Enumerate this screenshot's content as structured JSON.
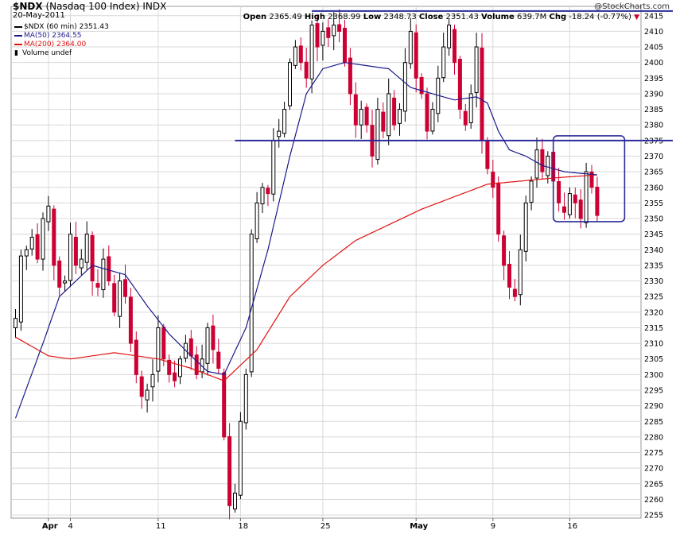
{
  "header": {
    "symbol": "$NDX",
    "symbol_desc": "(Nasdaq 100 Index)",
    "exchange": "INDX",
    "date": "20-May-2011",
    "open_label": "Open",
    "open_value": "2365.49",
    "high_label": "High",
    "high_value": "2368.99",
    "low_label": "Low",
    "low_value": "2348.73",
    "close_label": "Close",
    "close_value": "2351.43",
    "volume_label": "Volume",
    "volume_value": "639.7M",
    "chg_label": "Chg",
    "chg_value": "-18.24 (-0.77%)",
    "watermark": "@StockCharts.com"
  },
  "legend": {
    "price": "$NDX (60 min) 2351.43",
    "ma50": "MA(50) 2364.55",
    "ma200": "MA(200) 2364.00",
    "volume": "Volume undef"
  },
  "colors": {
    "up_candle": "#000000",
    "down_candle": "#cc0033",
    "ma50": "#1a1a8c",
    "ma200": "#e01010",
    "trendline": "#2b2b9c",
    "grid": "#d8d8d8"
  },
  "chart_data": {
    "type": "candlestick",
    "interval": "60 min",
    "y_axis": {
      "range": [
        2254,
        2418
      ],
      "ticks": [
        2255,
        2260,
        2265,
        2270,
        2275,
        2280,
        2285,
        2290,
        2295,
        2300,
        2305,
        2310,
        2315,
        2320,
        2325,
        2330,
        2335,
        2340,
        2345,
        2350,
        2355,
        2360,
        2365,
        2370,
        2375,
        2380,
        2385,
        2390,
        2395,
        2400,
        2405,
        2410,
        2415
      ]
    },
    "x_axis": {
      "ticks": [
        {
          "label": "Apr",
          "bar": 6,
          "bold": true
        },
        {
          "label": "4",
          "bar": 10,
          "bold": false
        },
        {
          "label": "11",
          "bar": 26,
          "bold": false
        },
        {
          "label": "18",
          "bar": 41,
          "bold": false
        },
        {
          "label": "25",
          "bar": 56,
          "bold": false
        },
        {
          "label": "May",
          "bar": 73,
          "bold": true
        },
        {
          "label": "9",
          "bar": 87,
          "bold": false
        },
        {
          "label": "16",
          "bar": 101,
          "bold": false
        }
      ]
    },
    "bar_count": 115,
    "close_anchors": [
      [
        0,
        2318
      ],
      [
        1,
        2338
      ],
      [
        2,
        2340
      ],
      [
        3,
        2344
      ],
      [
        4,
        2337
      ],
      [
        5,
        2350
      ],
      [
        6,
        2354
      ],
      [
        7,
        2335
      ],
      [
        8,
        2328
      ],
      [
        9,
        2330
      ],
      [
        10,
        2345
      ],
      [
        11,
        2335
      ],
      [
        12,
        2337
      ],
      [
        13,
        2345
      ],
      [
        14,
        2330
      ],
      [
        15,
        2328
      ],
      [
        16,
        2337
      ],
      [
        17,
        2330
      ],
      [
        18,
        2320
      ],
      [
        19,
        2330
      ],
      [
        20,
        2325
      ],
      [
        21,
        2310
      ],
      [
        22,
        2300
      ],
      [
        23,
        2293
      ],
      [
        24,
        2295
      ],
      [
        25,
        2300
      ],
      [
        26,
        2315
      ],
      [
        27,
        2305
      ],
      [
        28,
        2300
      ],
      [
        29,
        2298
      ],
      [
        30,
        2305
      ],
      [
        31,
        2310
      ],
      [
        32,
        2306
      ],
      [
        33,
        2300
      ],
      [
        34,
        2305
      ],
      [
        35,
        2315
      ],
      [
        36,
        2308
      ],
      [
        37,
        2302
      ],
      [
        38,
        2280
      ],
      [
        39,
        2258
      ],
      [
        40,
        2262
      ],
      [
        41,
        2285
      ],
      [
        42,
        2300
      ],
      [
        43,
        2345
      ],
      [
        44,
        2355
      ],
      [
        45,
        2360
      ],
      [
        46,
        2358
      ],
      [
        47,
        2375
      ],
      [
        48,
        2378
      ],
      [
        49,
        2385
      ],
      [
        50,
        2400
      ],
      [
        51,
        2405
      ],
      [
        52,
        2400
      ],
      [
        53,
        2395
      ],
      [
        54,
        2412
      ],
      [
        55,
        2405
      ],
      [
        56,
        2410
      ],
      [
        57,
        2408
      ],
      [
        58,
        2412
      ],
      [
        59,
        2410
      ],
      [
        60,
        2400
      ],
      [
        61,
        2390
      ],
      [
        62,
        2380
      ],
      [
        63,
        2385
      ],
      [
        64,
        2380
      ],
      [
        65,
        2370
      ],
      [
        66,
        2385
      ],
      [
        67,
        2378
      ],
      [
        68,
        2390
      ],
      [
        69,
        2380
      ],
      [
        70,
        2385
      ],
      [
        71,
        2400
      ],
      [
        72,
        2410
      ],
      [
        73,
        2395
      ],
      [
        74,
        2390
      ],
      [
        75,
        2378
      ],
      [
        76,
        2385
      ],
      [
        77,
        2395
      ],
      [
        78,
        2405
      ],
      [
        79,
        2412
      ],
      [
        80,
        2400
      ],
      [
        81,
        2385
      ],
      [
        82,
        2380
      ],
      [
        83,
        2390
      ],
      [
        84,
        2405
      ],
      [
        85,
        2375
      ],
      [
        86,
        2366
      ],
      [
        87,
        2360
      ],
      [
        88,
        2345
      ],
      [
        89,
        2335
      ],
      [
        90,
        2328
      ],
      [
        91,
        2325
      ],
      [
        92,
        2340
      ],
      [
        93,
        2355
      ],
      [
        94,
        2362
      ],
      [
        95,
        2372
      ],
      [
        96,
        2365
      ],
      [
        97,
        2370
      ],
      [
        98,
        2362
      ],
      [
        99,
        2355
      ],
      [
        100,
        2352
      ],
      [
        101,
        2358
      ],
      [
        102,
        2355
      ],
      [
        103,
        2350
      ],
      [
        104,
        2365
      ],
      [
        105,
        2360
      ],
      [
        106,
        2351
      ]
    ],
    "ma50_anchors": [
      [
        0,
        2286
      ],
      [
        5,
        2310
      ],
      [
        8,
        2325
      ],
      [
        14,
        2335
      ],
      [
        20,
        2332
      ],
      [
        24,
        2322
      ],
      [
        28,
        2313
      ],
      [
        32,
        2306
      ],
      [
        35,
        2301
      ],
      [
        38,
        2300
      ],
      [
        42,
        2315
      ],
      [
        46,
        2340
      ],
      [
        50,
        2370
      ],
      [
        53,
        2390
      ],
      [
        56,
        2398
      ],
      [
        60,
        2400
      ],
      [
        64,
        2399
      ],
      [
        68,
        2398
      ],
      [
        72,
        2392
      ],
      [
        76,
        2390
      ],
      [
        80,
        2388
      ],
      [
        84,
        2389
      ],
      [
        86,
        2387
      ],
      [
        88,
        2378
      ],
      [
        90,
        2372
      ],
      [
        93,
        2370
      ],
      [
        96,
        2367
      ],
      [
        100,
        2365
      ],
      [
        106,
        2364
      ]
    ],
    "ma200_anchors": [
      [
        0,
        2312
      ],
      [
        6,
        2306
      ],
      [
        10,
        2305
      ],
      [
        18,
        2307
      ],
      [
        26,
        2305
      ],
      [
        32,
        2302
      ],
      [
        38,
        2298
      ],
      [
        44,
        2308
      ],
      [
        50,
        2325
      ],
      [
        56,
        2335
      ],
      [
        62,
        2343
      ],
      [
        68,
        2348
      ],
      [
        74,
        2353
      ],
      [
        80,
        2357
      ],
      [
        86,
        2361
      ],
      [
        92,
        2362
      ],
      [
        98,
        2363
      ],
      [
        106,
        2364
      ]
    ],
    "trendlines": [
      {
        "name": "resistance",
        "from": {
          "bar": 54,
          "y": 2416.5
        },
        "to": {
          "bar": 115,
          "y": 2416.5
        }
      },
      {
        "name": "support",
        "from": {
          "bar": 40,
          "y": 2375
        },
        "to": {
          "bar": 115,
          "y": 2375
        }
      }
    ],
    "highlight_box": {
      "bar_from": 98,
      "bar_to": 111,
      "y_from": 2349,
      "y_to": 2376.5
    }
  }
}
